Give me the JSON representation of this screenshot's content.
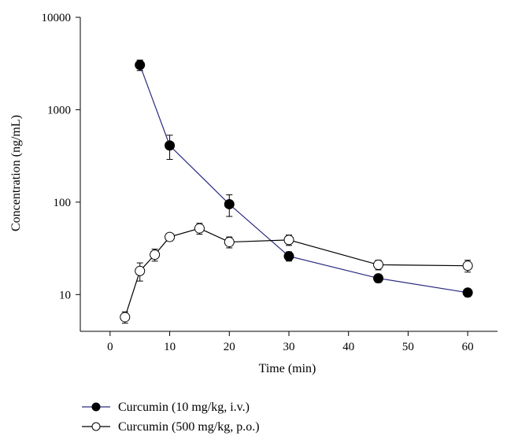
{
  "chart_data": {
    "type": "line",
    "title": "",
    "xlabel": "Time (min)",
    "ylabel": "Concentration (ng/mL)",
    "xlim": [
      -5,
      65
    ],
    "ylim": [
      4,
      10000
    ],
    "y_scale": "log",
    "x_ticks": [
      0,
      10,
      20,
      30,
      40,
      50,
      60
    ],
    "y_ticks": [
      10,
      100,
      1000,
      10000
    ],
    "grid": false,
    "legend_position": "bottom-left",
    "series": [
      {
        "name": "Curcumin (10 mg/kg, i.v.)",
        "marker": "filled-circle",
        "line_color": "#2a2a80",
        "x": [
          5,
          10,
          20,
          30,
          45,
          60
        ],
        "y": [
          3050,
          410,
          95,
          26,
          15,
          10.5
        ],
        "err": [
          400,
          120,
          25,
          3,
          1.5,
          1
        ]
      },
      {
        "name": "Curcumin (500 mg/kg, p.o.)",
        "marker": "open-circle",
        "line_color": "#000000",
        "x": [
          2.5,
          5,
          7.5,
          10,
          15,
          20,
          30,
          45,
          60
        ],
        "y": [
          5.7,
          18,
          27,
          42,
          52,
          37,
          39,
          21,
          20.5
        ],
        "err": [
          0.8,
          4,
          4,
          4,
          7,
          5,
          5,
          2.5,
          3
        ]
      }
    ]
  }
}
